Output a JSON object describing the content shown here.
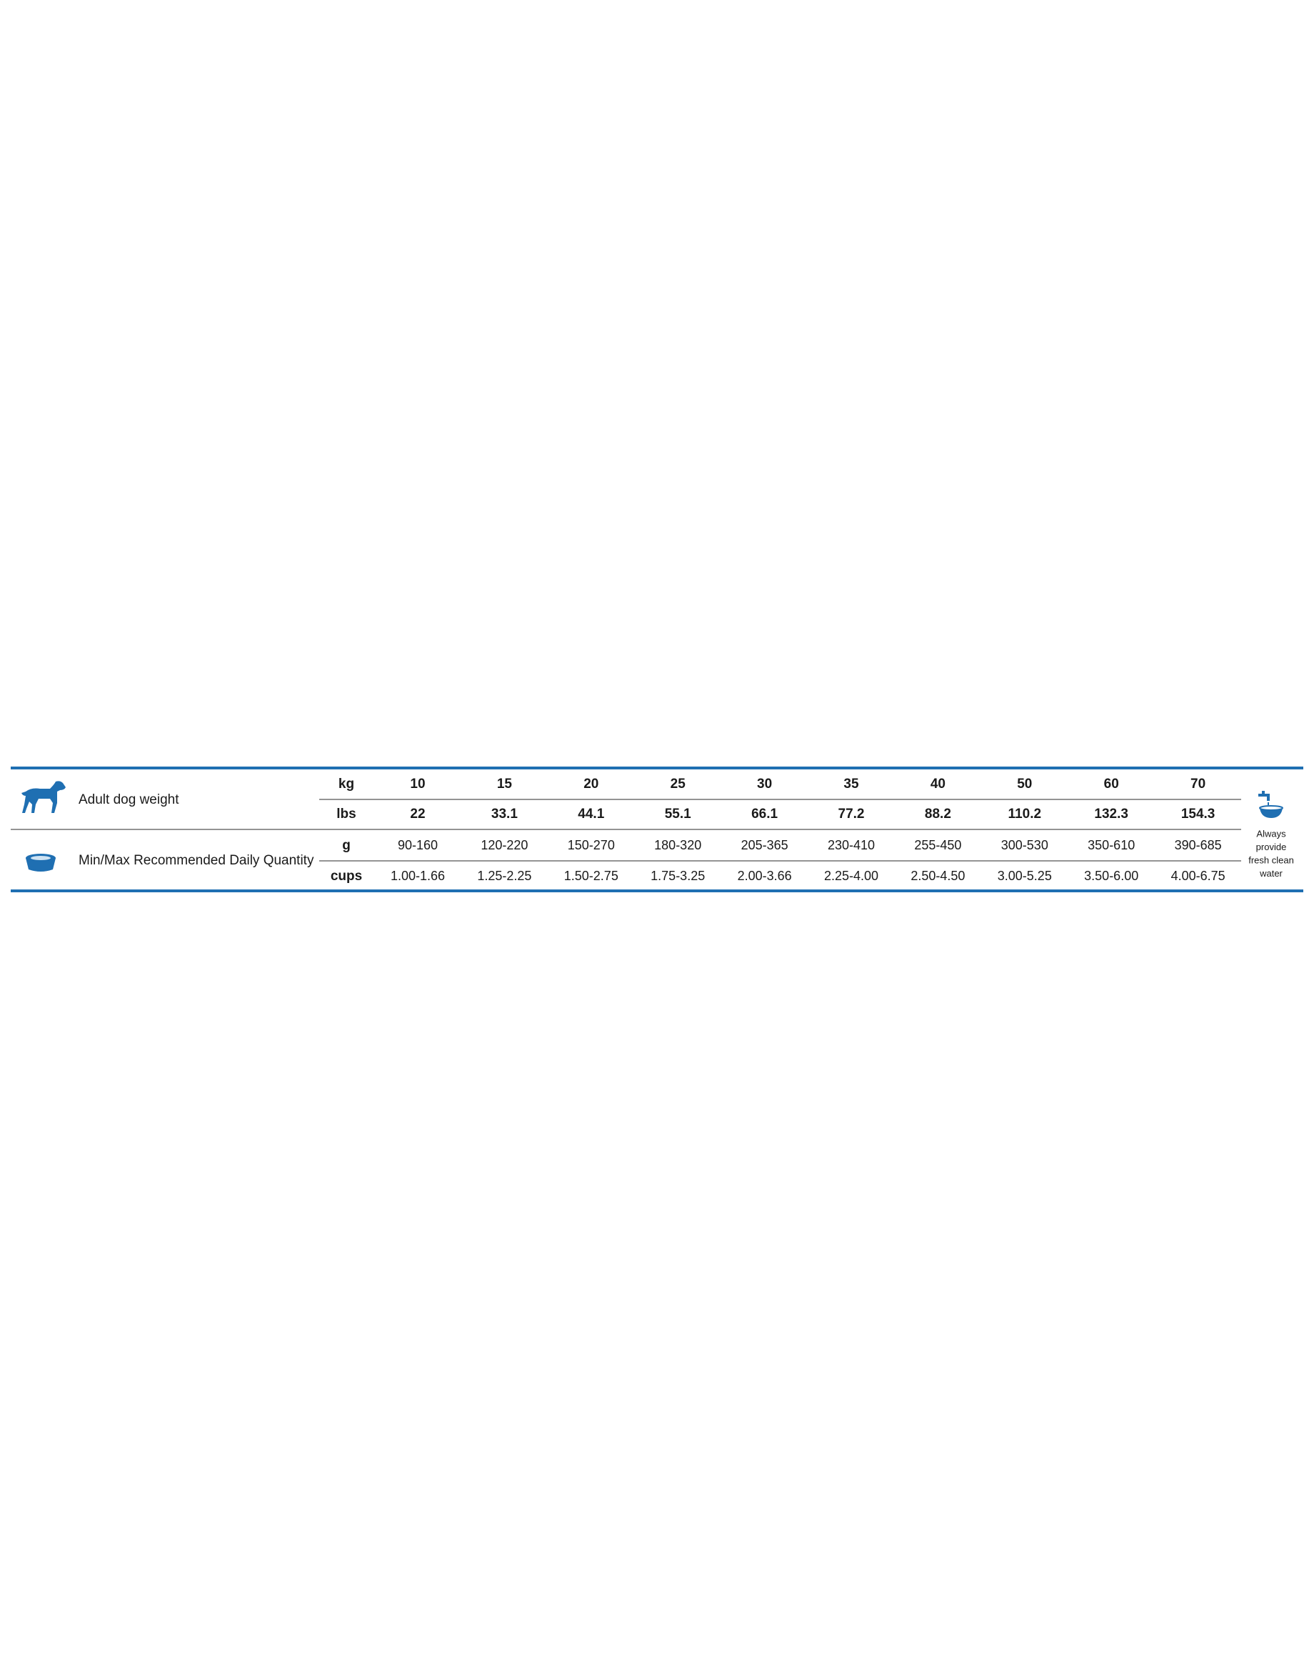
{
  "table": {
    "rows": [
      {
        "label": "Adult dog weight",
        "units": [
          {
            "unit": "kg",
            "values": [
              10,
              15,
              20,
              25,
              30,
              35,
              40,
              50,
              60,
              70
            ]
          },
          {
            "unit": "lbs",
            "values": [
              22,
              33.1,
              44.1,
              55.1,
              66.1,
              77.2,
              88.2,
              110.2,
              132.3,
              154.3
            ]
          }
        ]
      },
      {
        "label": "Min/Max Recommended Daily Quantity",
        "units": [
          {
            "unit": "g",
            "values": [
              "90-160",
              "120-220",
              "150-270",
              "180-320",
              "205-365",
              "230-410",
              "255-450",
              "300-530",
              "350-610",
              "390-685"
            ]
          },
          {
            "unit": "cups",
            "values": [
              "1.00-1.66",
              "1.25-2.25",
              "1.50-2.75",
              "1.75-3.25",
              "2.00-3.66",
              "2.25-4.00",
              "2.50-4.50",
              "3.00-5.25",
              "3.50-6.00",
              "4.00-6.75"
            ]
          }
        ]
      }
    ],
    "note": [
      "Always",
      "provide",
      "fresh clean",
      "water"
    ]
  }
}
